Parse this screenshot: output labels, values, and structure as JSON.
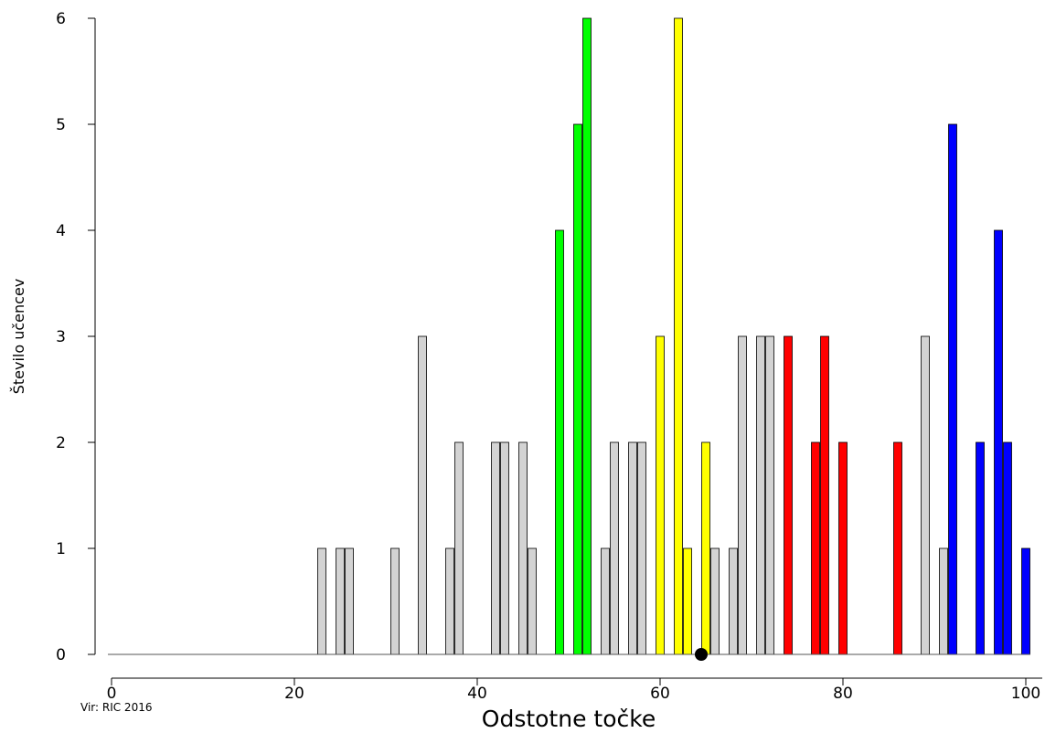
{
  "chart_data": {
    "type": "bar",
    "xlabel": "Odstotne točke",
    "ylabel": "Število učencev",
    "source": "Vir: RIC 2016",
    "xlim": [
      0,
      100
    ],
    "ylim": [
      0,
      6
    ],
    "x_ticks": [
      0,
      20,
      40,
      60,
      80,
      100
    ],
    "y_ticks": [
      0,
      1,
      2,
      3,
      4,
      5,
      6
    ],
    "grid": false,
    "colors": {
      "gray": "#d3d3d3",
      "green": "#00ff00",
      "yellow": "#ffff00",
      "red": "#ff0000",
      "blue": "#0000ff"
    },
    "bars": [
      {
        "x": 23,
        "value": 1,
        "color": "gray"
      },
      {
        "x": 25,
        "value": 1,
        "color": "gray"
      },
      {
        "x": 26,
        "value": 1,
        "color": "gray"
      },
      {
        "x": 31,
        "value": 1,
        "color": "gray"
      },
      {
        "x": 34,
        "value": 3,
        "color": "gray"
      },
      {
        "x": 37,
        "value": 1,
        "color": "gray"
      },
      {
        "x": 38,
        "value": 2,
        "color": "gray"
      },
      {
        "x": 42,
        "value": 2,
        "color": "gray"
      },
      {
        "x": 43,
        "value": 2,
        "color": "gray"
      },
      {
        "x": 45,
        "value": 2,
        "color": "gray"
      },
      {
        "x": 46,
        "value": 1,
        "color": "gray"
      },
      {
        "x": 49,
        "value": 4,
        "color": "green"
      },
      {
        "x": 51,
        "value": 5,
        "color": "green"
      },
      {
        "x": 52,
        "value": 6,
        "color": "green"
      },
      {
        "x": 54,
        "value": 1,
        "color": "gray"
      },
      {
        "x": 55,
        "value": 2,
        "color": "gray"
      },
      {
        "x": 57,
        "value": 2,
        "color": "gray"
      },
      {
        "x": 58,
        "value": 2,
        "color": "gray"
      },
      {
        "x": 60,
        "value": 3,
        "color": "yellow"
      },
      {
        "x": 62,
        "value": 6,
        "color": "yellow"
      },
      {
        "x": 63,
        "value": 1,
        "color": "yellow"
      },
      {
        "x": 65,
        "value": 2,
        "color": "yellow"
      },
      {
        "x": 66,
        "value": 1,
        "color": "gray"
      },
      {
        "x": 68,
        "value": 1,
        "color": "gray"
      },
      {
        "x": 69,
        "value": 3,
        "color": "gray"
      },
      {
        "x": 71,
        "value": 3,
        "color": "gray"
      },
      {
        "x": 72,
        "value": 3,
        "color": "gray"
      },
      {
        "x": 74,
        "value": 3,
        "color": "red"
      },
      {
        "x": 77,
        "value": 2,
        "color": "red"
      },
      {
        "x": 78,
        "value": 3,
        "color": "red"
      },
      {
        "x": 80,
        "value": 2,
        "color": "red"
      },
      {
        "x": 86,
        "value": 2,
        "color": "red"
      },
      {
        "x": 89,
        "value": 3,
        "color": "gray"
      },
      {
        "x": 91,
        "value": 1,
        "color": "gray"
      },
      {
        "x": 92,
        "value": 5,
        "color": "blue"
      },
      {
        "x": 95,
        "value": 2,
        "color": "blue"
      },
      {
        "x": 97,
        "value": 4,
        "color": "blue"
      },
      {
        "x": 98,
        "value": 2,
        "color": "blue"
      },
      {
        "x": 100,
        "value": 1,
        "color": "blue"
      }
    ],
    "marker": {
      "x": 64.5,
      "y": 0
    }
  }
}
